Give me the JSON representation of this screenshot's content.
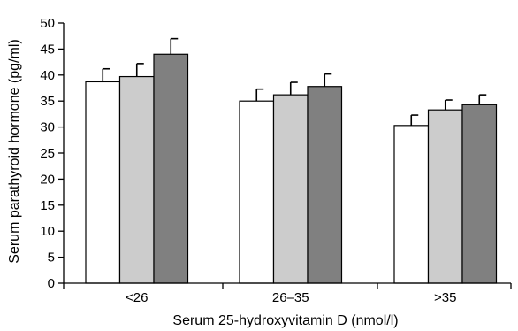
{
  "chart_data": {
    "type": "bar",
    "xlabel": "Serum 25-hydroxyvitamin D (nmol/l)",
    "ylabel": "Serum parathyroid hormone (pg/ml)",
    "ylim": [
      0,
      50
    ],
    "yticks": [
      0,
      5,
      10,
      15,
      20,
      25,
      30,
      35,
      40,
      45,
      50
    ],
    "categories": [
      "<26",
      "26–35",
      ">35"
    ],
    "grid": false,
    "error_bars": "upper",
    "series": [
      {
        "color": "#ffffff",
        "values": [
          38.7,
          35.0,
          30.3
        ],
        "errors": [
          2.5,
          2.3,
          2.0
        ]
      },
      {
        "color": "#cccccc",
        "values": [
          39.7,
          36.2,
          33.3
        ],
        "errors": [
          2.5,
          2.4,
          1.9
        ]
      },
      {
        "color": "#808080",
        "values": [
          44.0,
          37.8,
          34.3
        ],
        "errors": [
          3.0,
          2.4,
          1.9
        ]
      }
    ]
  }
}
